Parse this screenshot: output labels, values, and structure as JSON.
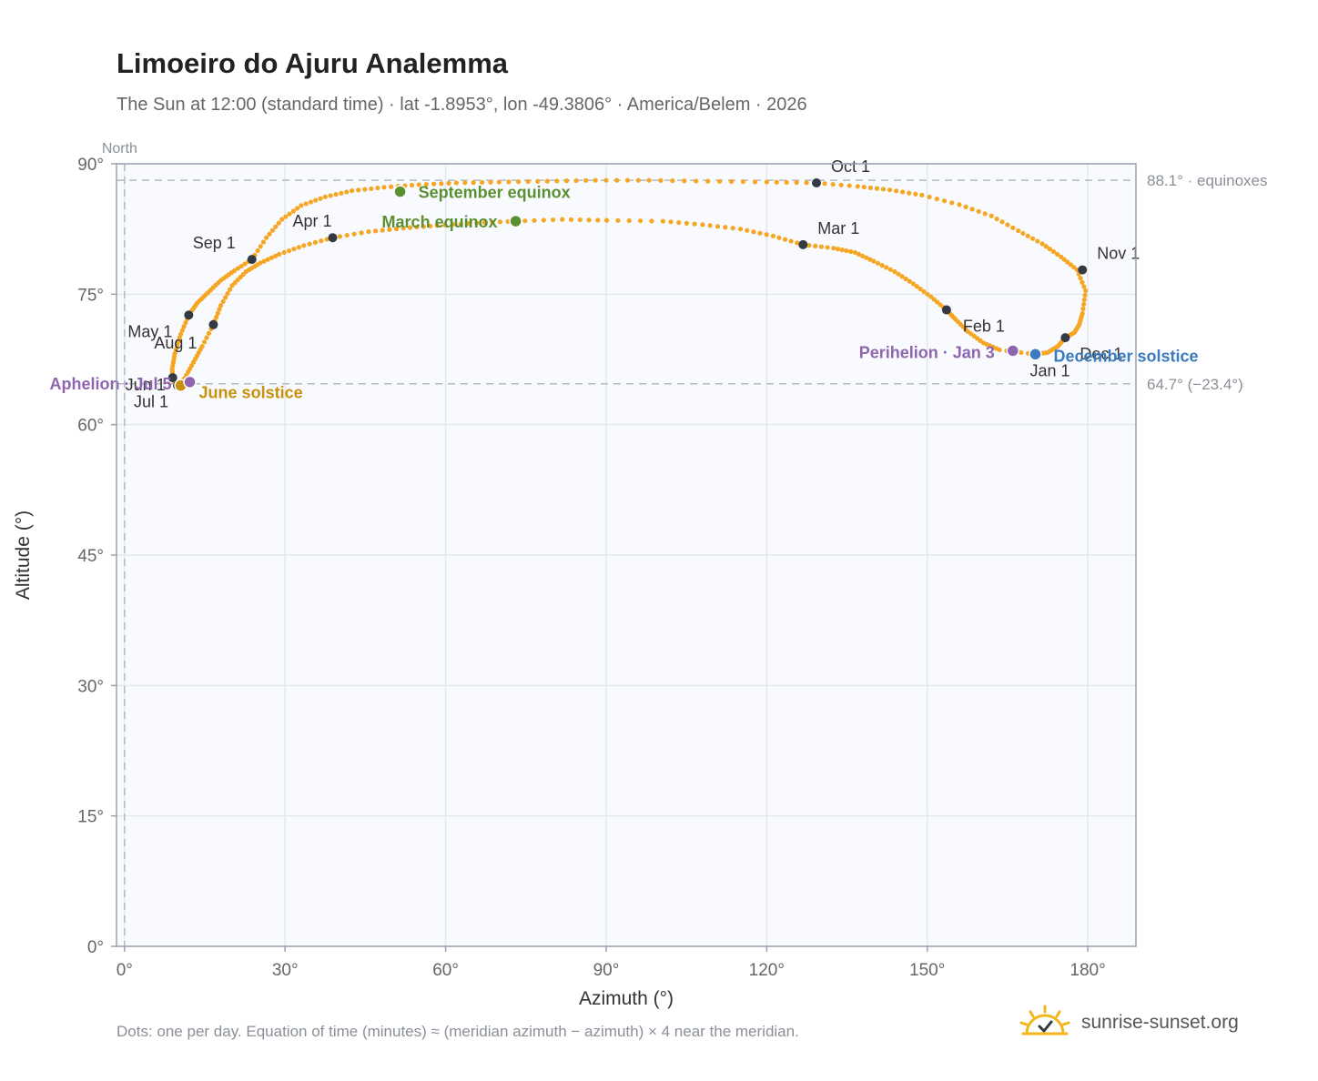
{
  "title": "Limoeiro do Ajuru Analemma",
  "subtitle": "The Sun at 12:00 (standard time) · lat -1.8953°, lon -49.3806° · America/Belem · 2026",
  "footnote": "Dots: one per day. Equation of time (minutes) ≈ (meridian azimuth − azimuth) × 4 near the meridian.",
  "brand": "sunrise-sunset.org",
  "colors": {
    "curve": "#f5a623",
    "month_marker": "#333a44",
    "equinox": "#5a8f32",
    "june_solstice": "#c8900e",
    "december_solstice": "#3a7bbf",
    "apsis": "#9065b0",
    "plot_bg": "#f8fafd",
    "grid": "#e4e8ee",
    "frame": "#9aa3ad"
  },
  "chart_data": {
    "type": "scatter",
    "xlabel": "Azimuth (°)",
    "ylabel": "Altitude (°)",
    "xlim": [
      -1.5,
      189
    ],
    "ylim": [
      0,
      90
    ],
    "x_ticks": [
      0,
      30,
      60,
      90,
      120,
      150,
      180
    ],
    "x_tick_labels": [
      "0°",
      "30°",
      "60°",
      "90°",
      "120°",
      "150°",
      "180°"
    ],
    "y_ticks": [
      0,
      15,
      30,
      45,
      60,
      75,
      90
    ],
    "y_tick_labels": [
      "0°",
      "15°",
      "30°",
      "45°",
      "60°",
      "75°",
      "90°"
    ],
    "grid": true,
    "north_label": "North",
    "north_azimuth": 0,
    "reference_lines": [
      {
        "altitude": 88.1,
        "label": "88.1° · equinoxes"
      },
      {
        "altitude": 64.7,
        "label": "64.7° (−23.4°)"
      }
    ],
    "series": [
      {
        "points": [
          [
            170.2,
            68.1
          ],
          [
            163.5,
            68.6
          ],
          [
            160.5,
            69.4
          ],
          [
            157.6,
            70.7
          ],
          [
            155.3,
            72.1
          ],
          [
            153.6,
            73.2
          ],
          [
            150.7,
            74.7
          ],
          [
            147.4,
            76.2
          ],
          [
            143.9,
            77.6
          ],
          [
            140.0,
            78.8
          ],
          [
            136.5,
            79.8
          ],
          [
            132.5,
            80.3
          ],
          [
            126.8,
            80.7
          ],
          [
            121.2,
            81.7
          ],
          [
            115.1,
            82.5
          ],
          [
            108.0,
            83.0
          ],
          [
            100.6,
            83.4
          ],
          [
            90.1,
            83.5
          ],
          [
            81.8,
            83.6
          ],
          [
            73.1,
            83.4
          ],
          [
            65.8,
            83.2
          ],
          [
            58.4,
            82.9
          ],
          [
            52.1,
            82.6
          ],
          [
            45.6,
            82.2
          ],
          [
            38.9,
            81.5
          ],
          [
            33.5,
            80.6
          ],
          [
            28.9,
            79.6
          ],
          [
            25.4,
            78.6
          ],
          [
            22.7,
            77.6
          ],
          [
            20.1,
            76.0
          ],
          [
            18.0,
            73.7
          ],
          [
            16.6,
            71.5
          ],
          [
            14.5,
            69.0
          ],
          [
            12.9,
            67.2
          ],
          [
            11.2,
            65.3
          ],
          [
            9.9,
            64.5
          ],
          [
            9.4,
            64.8
          ],
          [
            9.0,
            65.4
          ],
          [
            8.9,
            66.4
          ],
          [
            9.4,
            68.2
          ],
          [
            10.5,
            70.4
          ],
          [
            12.0,
            72.6
          ],
          [
            13.6,
            74.0
          ],
          [
            15.6,
            75.2
          ],
          [
            18.0,
            76.6
          ],
          [
            20.5,
            77.7
          ],
          [
            23.8,
            79.0
          ],
          [
            26.5,
            81.5
          ],
          [
            29.4,
            83.6
          ],
          [
            33.0,
            85.2
          ],
          [
            37.5,
            86.2
          ],
          [
            42.5,
            86.9
          ],
          [
            48.5,
            87.3
          ],
          [
            55.0,
            87.6
          ],
          [
            62.0,
            87.8
          ],
          [
            70.0,
            87.9
          ],
          [
            79.0,
            88.0
          ],
          [
            88.0,
            88.1
          ],
          [
            98.0,
            88.1
          ],
          [
            109.0,
            88.0
          ],
          [
            120.0,
            87.9
          ],
          [
            129.3,
            87.8
          ],
          [
            137.0,
            87.4
          ],
          [
            143.0,
            87.0
          ],
          [
            149.0,
            86.4
          ],
          [
            156.0,
            85.3
          ],
          [
            162.0,
            84.0
          ],
          [
            167.0,
            82.3
          ],
          [
            171.5,
            80.8
          ],
          [
            175.0,
            79.3
          ],
          [
            178.0,
            77.8
          ],
          [
            179.6,
            75.4
          ],
          [
            179.0,
            72.8
          ],
          [
            178.4,
            71.5
          ],
          [
            177.5,
            70.6
          ],
          [
            175.8,
            70.0
          ],
          [
            174.4,
            69.0
          ],
          [
            172.5,
            68.3
          ],
          [
            170.2,
            68.1
          ]
        ]
      }
    ],
    "month_markers": [
      {
        "label": "Jan 1",
        "az": 170.2,
        "alt": 68.1
      },
      {
        "label": "Feb 1",
        "az": 153.6,
        "alt": 73.2
      },
      {
        "label": "Mar 1",
        "az": 126.8,
        "alt": 80.7
      },
      {
        "label": "Apr 1",
        "az": 38.9,
        "alt": 81.5
      },
      {
        "label": "May 1",
        "az": 12.0,
        "alt": 72.6
      },
      {
        "label": "Jun 1",
        "az": 9.0,
        "alt": 65.4
      },
      {
        "label": "Jul 1",
        "az": 9.9,
        "alt": 64.5
      },
      {
        "label": "Aug 1",
        "az": 16.6,
        "alt": 71.5
      },
      {
        "label": "Sep 1",
        "az": 23.8,
        "alt": 79.0
      },
      {
        "label": "Oct 1",
        "az": 129.3,
        "alt": 87.8
      },
      {
        "label": "Nov 1",
        "az": 179.0,
        "alt": 77.8
      },
      {
        "label": "Dec 1",
        "az": 175.8,
        "alt": 70.0
      }
    ],
    "events": [
      {
        "label": "September equinox",
        "az": 51.5,
        "alt": 86.8,
        "kind": "equinox"
      },
      {
        "label": "March equinox",
        "az": 73.1,
        "alt": 83.4,
        "kind": "equinox"
      },
      {
        "label": "June solstice",
        "az": 10.5,
        "alt": 64.5,
        "kind": "june_solstice"
      },
      {
        "label": "December solstice",
        "az": 170.2,
        "alt": 68.1,
        "kind": "december_solstice"
      },
      {
        "label": "Aphelion · Jul 5",
        "az": 12.2,
        "alt": 64.9,
        "kind": "apsis"
      },
      {
        "label": "Perihelion · Jan 3",
        "az": 166.0,
        "alt": 68.5,
        "kind": "apsis"
      }
    ]
  }
}
